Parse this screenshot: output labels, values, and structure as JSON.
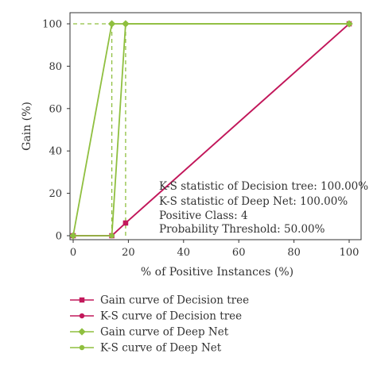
{
  "chart_data": {
    "type": "line",
    "xlabel": "% of Positive Instances (%)",
    "ylabel": "Gain (%)",
    "xlim": [
      0,
      100
    ],
    "ylim": [
      0,
      100
    ],
    "x_ticks": [
      0,
      20,
      40,
      60,
      80,
      100
    ],
    "y_ticks": [
      0,
      20,
      40,
      60,
      80,
      100
    ],
    "grid": false,
    "legend_position": "bottom",
    "series": [
      {
        "name": "Gain curve of Decision tree",
        "color": "#c2185b",
        "marker": "square",
        "points": [
          [
            0,
            0
          ],
          [
            14,
            0
          ],
          [
            19,
            6
          ],
          [
            100,
            100
          ]
        ]
      },
      {
        "name": "K-S curve of Decision tree",
        "color": "#c2185b",
        "marker": "circle",
        "points": [
          [
            0,
            0
          ],
          [
            14,
            0
          ],
          [
            19,
            6
          ],
          [
            100,
            100
          ]
        ]
      },
      {
        "name": "Gain curve of Deep Net",
        "color": "#8fbf3f",
        "marker": "diamond",
        "points": [
          [
            0,
            0
          ],
          [
            14,
            100
          ],
          [
            19,
            100
          ],
          [
            100,
            100
          ]
        ]
      },
      {
        "name": "K-S curve of Deep Net",
        "color": "#8fbf3f",
        "marker": "circle",
        "points": [
          [
            0,
            0
          ],
          [
            14,
            0
          ],
          [
            19,
            100
          ],
          [
            100,
            100
          ]
        ]
      }
    ],
    "ks_lines": [
      {
        "x": 14,
        "y": 100,
        "color": "#8fbf3f"
      },
      {
        "x": 19,
        "y": 100,
        "color": "#8fbf3f"
      }
    ],
    "annotations": [
      "K-S statistic of Decision tree: 100.00%",
      "K-S statistic of Deep Net: 100.00%",
      "Positive Class: 4",
      "Probability Threshold: 50.00%"
    ]
  }
}
